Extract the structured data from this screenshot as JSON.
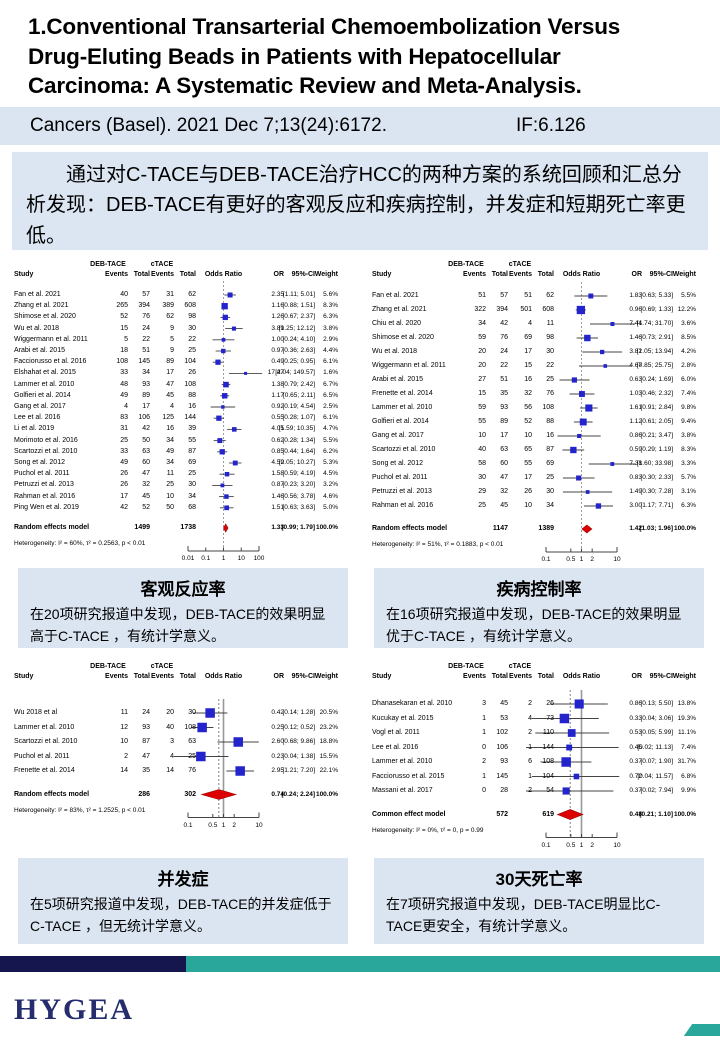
{
  "header": {
    "title": "1.Conventional Transarterial Chemoembolization Versus Drug-Eluting Beads in Patients with Hepatocellular Carcinoma: A Systematic Review and Meta-Analysis."
  },
  "citation": {
    "text": "Cancers (Basel). 2021 Dec 7;13(24):6172.",
    "impact_factor": "IF:6.126"
  },
  "summary": {
    "text": "通过对C-TACE与DEB-TACE治疗HCC的两种方案的系统回顾和汇总分析发现：DEB-TACE有更好的客观反应和疾病控制，并发症和短期死亡率更低。"
  },
  "colors": {
    "band_blue": "#dbe5f1",
    "square_blue": "#2424cd",
    "diamond_red": "#dd0000",
    "footer_navy": "#16164e",
    "footer_teal": "#2aa79b"
  },
  "chart_data": [
    {
      "type": "forest",
      "outcome": "objective-response-rate",
      "columns": {
        "group1": "DEB-TACE",
        "group2": "cTACE",
        "study": "Study",
        "events": "Events",
        "total": "Total",
        "odds_ratio": "Odds Ratio",
        "or": "OR",
        "ci": "95%-CI",
        "weight": "Weight"
      },
      "studies": [
        [
          "Fan et al. 2021",
          40,
          57,
          31,
          62,
          "2.35",
          "[1.11; 5.01]",
          "5.6%"
        ],
        [
          "Zhang et al. 2021",
          265,
          394,
          389,
          608,
          "1.16",
          "[0.88; 1.51]",
          "8.3%"
        ],
        [
          "Shimose et al. 2020",
          52,
          76,
          62,
          98,
          "1.26",
          "[0.67; 2.37]",
          "6.3%"
        ],
        [
          "Wu et al. 2018",
          15,
          24,
          9,
          30,
          "3.89",
          "[1.25; 12.12]",
          "3.8%"
        ],
        [
          "Wiggermann et al. 2011",
          5,
          22,
          5,
          22,
          "1.00",
          "[0.24; 4.10]",
          "2.9%"
        ],
        [
          "Arabi et al. 2015",
          18,
          51,
          9,
          25,
          "0.97",
          "[0.36; 2.63]",
          "4.4%"
        ],
        [
          "Facciorusso et al. 2016",
          108,
          145,
          89,
          104,
          "0.49",
          "[0.25; 0.95]",
          "6.1%"
        ],
        [
          "Elshahat et al. 2015",
          33,
          34,
          17,
          26,
          "17.47",
          "[2.04; 149.57]",
          "1.6%"
        ],
        [
          "Lammer et al. 2010",
          48,
          93,
          47,
          108,
          "1.38",
          "[0.79; 2.42]",
          "6.7%"
        ],
        [
          "Golfieri et al. 2014",
          49,
          89,
          45,
          88,
          "1.17",
          "[0.65; 2.11]",
          "6.5%"
        ],
        [
          "Gang et al. 2017",
          4,
          17,
          4,
          16,
          "0.92",
          "[0.19; 4.54]",
          "2.5%"
        ],
        [
          "Lee et al. 2016",
          83,
          106,
          125,
          144,
          "0.55",
          "[0.28; 1.07]",
          "6.1%"
        ],
        [
          "Li et al. 2019",
          31,
          42,
          16,
          39,
          "4.05",
          "[1.59; 10.35]",
          "4.7%"
        ],
        [
          "Morimoto et al. 2016",
          25,
          50,
          34,
          55,
          "0.62",
          "[0.28; 1.34]",
          "5.5%"
        ],
        [
          "Scartozzi et al. 2010",
          33,
          63,
          49,
          87,
          "0.85",
          "[0.44; 1.64]",
          "6.2%"
        ],
        [
          "Song et al. 2012",
          49,
          60,
          34,
          69,
          "4.59",
          "[2.05; 10.27]",
          "5.3%"
        ],
        [
          "Puchol et al. 2011",
          26,
          47,
          11,
          25,
          "1.58",
          "[0.59; 4.19]",
          "4.5%"
        ],
        [
          "Petruzzi et al. 2013",
          26,
          32,
          25,
          30,
          "0.87",
          "[0.23; 3.20]",
          "3.2%"
        ],
        [
          "Rahman et al. 2016",
          17,
          45,
          10,
          34,
          "1.46",
          "[0.56; 3.78]",
          "4.6%"
        ],
        [
          "Ping Wen et al. 2019",
          42,
          52,
          50,
          68,
          "1.51",
          "[0.63; 3.63]",
          "5.0%"
        ]
      ],
      "model": {
        "label": "Random effects model",
        "total1": "1499",
        "total2": "1738",
        "or": "1.33",
        "ci": "[0.99; 1.79]",
        "weight": "100.0%"
      },
      "heterogeneity": "Heterogeneity: I² = 60%, τ² = 0.2563, p < 0.01",
      "axis_ticks": [
        "0.01",
        "0.1",
        "1",
        "10",
        "100"
      ],
      "caption": {
        "title": "客观反应率",
        "text": "在20项研究报道中发现，DEB-TACE的效果明显高于C-TACE ，有统计学意义。"
      }
    },
    {
      "type": "forest",
      "outcome": "disease-control-rate",
      "columns": {
        "group1": "DEB-TACE",
        "group2": "cTACE",
        "study": "Study",
        "events": "Events",
        "total": "Total",
        "odds_ratio": "Odds Ratio",
        "or": "OR",
        "ci": "95%-CI",
        "weight": "Weight"
      },
      "studies": [
        [
          "Fan et al. 2021",
          51,
          57,
          51,
          62,
          "1.83",
          "[0.63; 5.33]",
          "5.5%"
        ],
        [
          "Zhang et al. 2021",
          322,
          394,
          501,
          608,
          "0.96",
          "[0.69; 1.33]",
          "12.2%"
        ],
        [
          "Chiu et al. 2020",
          34,
          42,
          4,
          11,
          "7.44",
          "[1.74; 31.70]",
          "3.6%"
        ],
        [
          "Shimose et al. 2020",
          59,
          76,
          69,
          98,
          "1.46",
          "[0.73; 2.91]",
          "8.5%"
        ],
        [
          "Wu et al. 2018",
          20,
          24,
          17,
          30,
          "3.82",
          "[1.05; 13.94]",
          "4.2%"
        ],
        [
          "Wiggermann et al. 2011",
          20,
          22,
          15,
          22,
          "4.67",
          "[0.85; 25.75]",
          "2.8%"
        ],
        [
          "Arabi et al. 2015",
          27,
          51,
          16,
          25,
          "0.63",
          "[0.24; 1.69]",
          "6.0%"
        ],
        [
          "Frenette et al. 2014",
          15,
          35,
          32,
          76,
          "1.03",
          "[0.46; 2.32]",
          "7.4%"
        ],
        [
          "Lammer et al. 2010",
          59,
          93,
          56,
          108,
          "1.61",
          "[0.91; 2.84]",
          "9.8%"
        ],
        [
          "Golfieri et al. 2014",
          55,
          89,
          52,
          88,
          "1.12",
          "[0.61; 2.05]",
          "9.4%"
        ],
        [
          "Gang et al. 2017",
          10,
          17,
          10,
          16,
          "0.86",
          "[0.21; 3.47]",
          "3.8%"
        ],
        [
          "Scartozzi et al. 2010",
          40,
          63,
          65,
          87,
          "0.59",
          "[0.29; 1.19]",
          "8.3%"
        ],
        [
          "Song et al. 2012",
          58,
          60,
          55,
          69,
          "7.38",
          "[1.60; 33.98]",
          "3.3%"
        ],
        [
          "Puchol et al. 2011",
          30,
          47,
          17,
          25,
          "0.83",
          "[0.30; 2.33]",
          "5.7%"
        ],
        [
          "Petruzzi et al. 2013",
          29,
          32,
          26,
          30,
          "1.49",
          "[0.30; 7.28]",
          "3.1%"
        ],
        [
          "Rahman et al. 2016",
          25,
          45,
          10,
          34,
          "3.00",
          "[1.17; 7.71]",
          "6.3%"
        ]
      ],
      "model": {
        "label": "Random effects model",
        "total1": "1147",
        "total2": "1389",
        "or": "1.42",
        "ci": "[1.03; 1.96]",
        "weight": "100.0%"
      },
      "heterogeneity": "Heterogeneity: I² = 51%, τ² = 0.1883, p < 0.01",
      "axis_ticks": [
        "0.1",
        "0.5",
        "1",
        "2",
        "10"
      ],
      "caption": {
        "title": "疾病控制率",
        "text": "在16项研究报道中发现，DEB-TACE的效果明显优于C-TACE ，有统计学意义。"
      }
    },
    {
      "type": "forest",
      "outcome": "complications",
      "columns": {
        "group1": "DEB-TACE",
        "group2": "cTACE",
        "study": "Study",
        "events": "Events",
        "total": "Total",
        "odds_ratio": "Odds Ratio",
        "or": "OR",
        "ci": "95%-CI",
        "weight": "Weight"
      },
      "studies": [
        [
          "Wu 2018 et al",
          11,
          24,
          20,
          30,
          "0.42",
          "[0.14; 1.28]",
          "20.5%"
        ],
        [
          "Lammer et al. 2010",
          12,
          93,
          40,
          108,
          "0.25",
          "[0.12; 0.52]",
          "23.2%"
        ],
        [
          "Scartozzi et al. 2010",
          10,
          87,
          3,
          63,
          "2.60",
          "[0.68; 9.86]",
          "18.8%"
        ],
        [
          "Puchol et al. 2011",
          2,
          47,
          4,
          25,
          "0.23",
          "[0.04; 1.38]",
          "15.5%"
        ],
        [
          "Frenette et al. 2014",
          14,
          35,
          14,
          76,
          "2.95",
          "[1.21; 7.20]",
          "22.1%"
        ]
      ],
      "model": {
        "label": "Random effects model",
        "total1": "286",
        "total2": "302",
        "or": "0.74",
        "ci": "[0.24; 2.24]",
        "weight": "100.0%"
      },
      "heterogeneity": "Heterogeneity: I² = 83%, τ² = 1.2525, p < 0.01",
      "axis_ticks": [
        "0.1",
        "0.5",
        "1",
        "2",
        "10"
      ],
      "caption": {
        "title": "并发症",
        "text": "在5项研究报道中发现，DEB-TACE的并发症低于C-TACE ，但无统计学意义。"
      }
    },
    {
      "type": "forest",
      "outcome": "30-day-mortality",
      "columns": {
        "group1": "DEB-TACE",
        "group2": "cTACE",
        "study": "Study",
        "events": "Events",
        "total": "Total",
        "odds_ratio": "Odds Ratio",
        "or": "OR",
        "ci": "95%-CI",
        "weight": "Weight"
      },
      "studies": [
        [
          "Dhanasekaran et al. 2010",
          3,
          45,
          2,
          26,
          "0.86",
          "[0.13; 5.50]",
          "13.8%"
        ],
        [
          "Kucukay et al. 2015",
          1,
          53,
          4,
          73,
          "0.33",
          "[0.04; 3.06]",
          "19.3%"
        ],
        [
          "Vogl et al. 2011",
          1,
          102,
          2,
          110,
          "0.53",
          "[0.05; 5.99]",
          "11.1%"
        ],
        [
          "Lee et al. 2016",
          0,
          106,
          1,
          144,
          "0.45",
          "[0.02; 11.13]",
          "7.4%"
        ],
        [
          "Lammer et al. 2010",
          2,
          93,
          6,
          108,
          "0.37",
          "[0.07; 1.90]",
          "31.7%"
        ],
        [
          "Facciorusso et al. 2015",
          1,
          145,
          1,
          104,
          "0.72",
          "[0.04; 11.57]",
          "6.8%"
        ],
        [
          "Massani et al. 2017",
          0,
          28,
          2,
          54,
          "0.37",
          "[0.02; 7.94]",
          "9.9%"
        ]
      ],
      "model": {
        "label": "Common effect model",
        "total1": "572",
        "total2": "619",
        "or": "0.48",
        "ci": "[0.21; 1.10]",
        "weight": "100.0%"
      },
      "heterogeneity": "Heterogeneity: I² = 0%, τ² = 0, p = 0.99",
      "axis_ticks": [
        "0.1",
        "0.5",
        "1",
        "2",
        "10"
      ],
      "caption": {
        "title": "30天死亡率",
        "text": "在7项研究报道中发现，DEB-TACE明显比C-TACE更安全，有统计学意义。"
      }
    }
  ],
  "footer": {
    "logo": "HYGEA"
  }
}
